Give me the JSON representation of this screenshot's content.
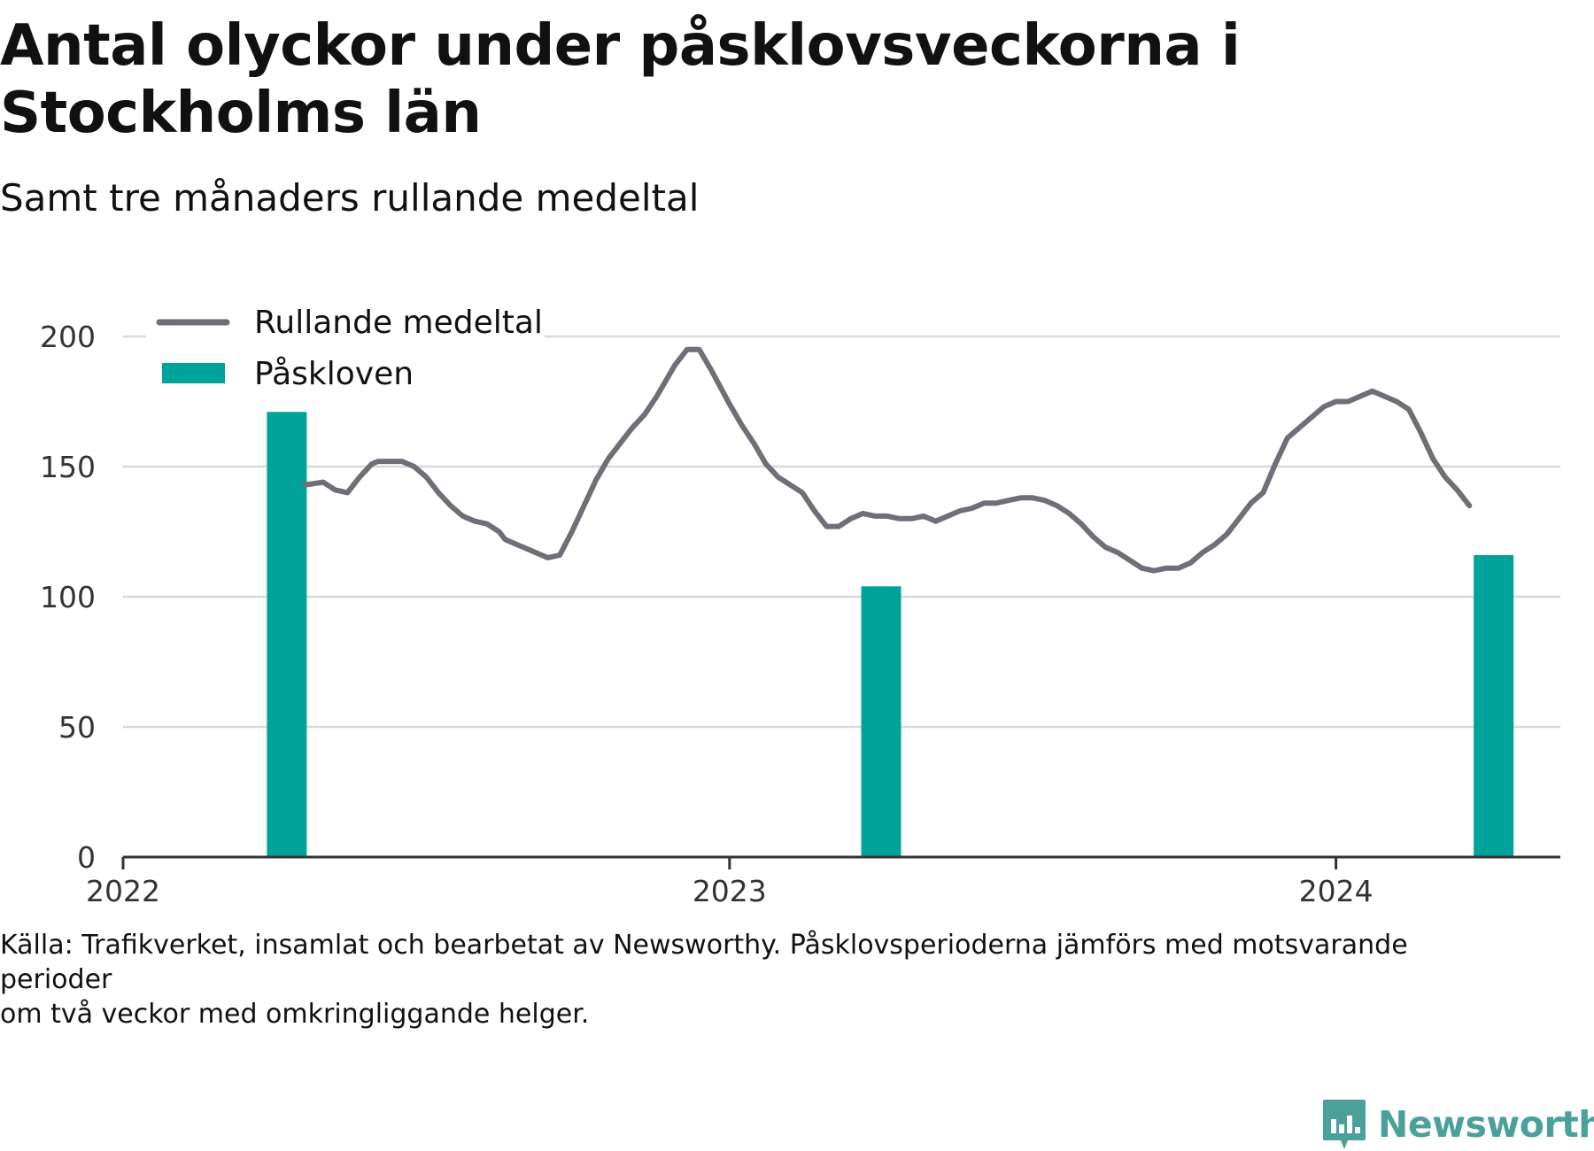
{
  "title": "Antal olyckor under påsklovsveckorna i Stockholms län",
  "subtitle": "Samt tre månaders rullande medeltal",
  "source": "Källa: Trafikverket, insamlat och bearbetat av Newsworthy. Påsklovsperioderna jämförs med motsvarande perioder\nom två veckor med omkringliggande helger.",
  "brand": "Newsworthy",
  "colors": {
    "line": "#6f6f78",
    "bar": "#00a39a",
    "grid": "#d9d9d9",
    "axis": "#333333",
    "brand": "#4aa09a"
  },
  "chart_data": {
    "type": "bar",
    "grid": true,
    "legend_position": "top-left",
    "ylim": [
      0,
      200
    ],
    "y_ticks": [
      0,
      50,
      100,
      150,
      200
    ],
    "xlim": [
      2022.0,
      2024.37
    ],
    "x_ticks": [
      2022,
      2023,
      2024
    ],
    "series": [
      {
        "name": "Rullande medeltal",
        "kind": "line",
        "x": [
          2022.3,
          2022.33,
          2022.35,
          2022.37,
          2022.39,
          2022.41,
          2022.42,
          2022.44,
          2022.46,
          2022.48,
          2022.5,
          2022.52,
          2022.54,
          2022.56,
          2022.58,
          2022.6,
          2022.62,
          2022.63,
          2022.65,
          2022.66,
          2022.68,
          2022.7,
          2022.72,
          2022.74,
          2022.76,
          2022.78,
          2022.8,
          2022.82,
          2022.84,
          2022.86,
          2022.88,
          2022.89,
          2022.91,
          2022.93,
          2022.95,
          2022.97,
          2023.0,
          2023.02,
          2023.04,
          2023.06,
          2023.08,
          2023.1,
          2023.12,
          2023.14,
          2023.16,
          2023.18,
          2023.2,
          2023.22,
          2023.24,
          2023.26,
          2023.28,
          2023.3,
          2023.32,
          2023.34,
          2023.36,
          2023.38,
          2023.4,
          2023.42,
          2023.44,
          2023.46,
          2023.48,
          2023.5,
          2023.52,
          2023.54,
          2023.56,
          2023.58,
          2023.6,
          2023.62,
          2023.64,
          2023.66,
          2023.68,
          2023.7,
          2023.72,
          2023.74,
          2023.76,
          2023.78,
          2023.8,
          2023.82,
          2023.84,
          2023.86,
          2023.88,
          2023.9,
          2023.92,
          2023.94,
          2023.96,
          2023.98,
          2024.0,
          2024.02,
          2024.04,
          2024.06,
          2024.08,
          2024.1,
          2024.12,
          2024.14,
          2024.16,
          2024.18,
          2024.2,
          2024.22
        ],
        "values": [
          143,
          144,
          141,
          140,
          146,
          151,
          152,
          152,
          152,
          150,
          146,
          140,
          135,
          131,
          129,
          128,
          125,
          122,
          120,
          119,
          117,
          115,
          116,
          125,
          135,
          145,
          153,
          159,
          165,
          170,
          177,
          181,
          189,
          195,
          195,
          187,
          174,
          166,
          159,
          151,
          146,
          143,
          140,
          133,
          127,
          127,
          130,
          132,
          131,
          131,
          130,
          130,
          131,
          129,
          131,
          133,
          134,
          136,
          136,
          137,
          138,
          138,
          137,
          135,
          132,
          128,
          123,
          119,
          117,
          114,
          111,
          110,
          111,
          111,
          113,
          117,
          120,
          124,
          130,
          136,
          140,
          151,
          161,
          165,
          169,
          173,
          175,
          175,
          177,
          179,
          177,
          175,
          172,
          163,
          153,
          146,
          141,
          135
        ]
      },
      {
        "name": "Påskloven",
        "kind": "bar",
        "x": [
          2022.27,
          2023.25,
          2024.26
        ],
        "values": [
          171,
          104,
          116
        ]
      }
    ]
  }
}
